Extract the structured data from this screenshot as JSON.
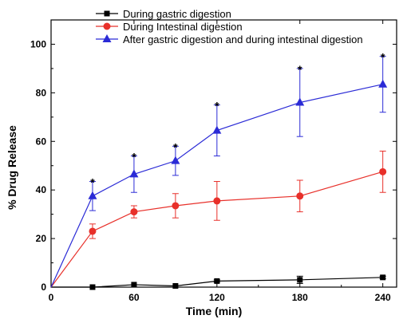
{
  "chart_data": {
    "type": "line",
    "xlabel": "Time (min)",
    "ylabel": "% Drug Release",
    "xlim": [
      0,
      250
    ],
    "ylim": [
      0,
      110
    ],
    "x_tick_values": [
      0,
      60,
      120,
      180,
      240
    ],
    "x_tick_labels": [
      "0",
      "60",
      "120",
      "180",
      "240"
    ],
    "y_tick_values": [
      0,
      20,
      40,
      60,
      80,
      100
    ],
    "y_tick_labels": [
      "0",
      "20",
      "40",
      "60",
      "80",
      "100"
    ],
    "grid": false,
    "legend_position": "top",
    "series": [
      {
        "name": "During gastric digestion",
        "color": "#000000",
        "marker": "square",
        "x": [
          0,
          30,
          60,
          90,
          120,
          180,
          240
        ],
        "y": [
          0,
          0,
          1,
          0.5,
          2.5,
          3,
          4
        ],
        "error": [
          0,
          0,
          0,
          0,
          0.5,
          1.5,
          0.5
        ]
      },
      {
        "name": "During Intestinal digestion",
        "color": "#e8302a",
        "marker": "circle",
        "x": [
          0,
          30,
          60,
          90,
          120,
          180,
          240
        ],
        "y": [
          0,
          23,
          31,
          33.5,
          35.5,
          37.5,
          47.5
        ],
        "error": [
          0,
          3,
          2.5,
          5,
          8,
          6.5,
          8.5
        ]
      },
      {
        "name": "After gastric digestion and during intestinal digestion",
        "color": "#2b2bd6",
        "marker": "triangle",
        "x": [
          0,
          30,
          60,
          90,
          120,
          180,
          240
        ],
        "y": [
          0,
          37.5,
          46.5,
          52,
          64.5,
          76,
          83.5
        ],
        "error": [
          0,
          6,
          7.5,
          6,
          10.5,
          14,
          11.5
        ]
      }
    ],
    "annotations": [
      {
        "text": "*",
        "x": 30,
        "y": 43.5
      },
      {
        "text": "*",
        "x": 60,
        "y": 54
      },
      {
        "text": "*",
        "x": 90,
        "y": 58
      },
      {
        "text": "*",
        "x": 120,
        "y": 75
      },
      {
        "text": "*",
        "x": 180,
        "y": 90
      },
      {
        "text": "*",
        "x": 240,
        "y": 95
      }
    ]
  }
}
